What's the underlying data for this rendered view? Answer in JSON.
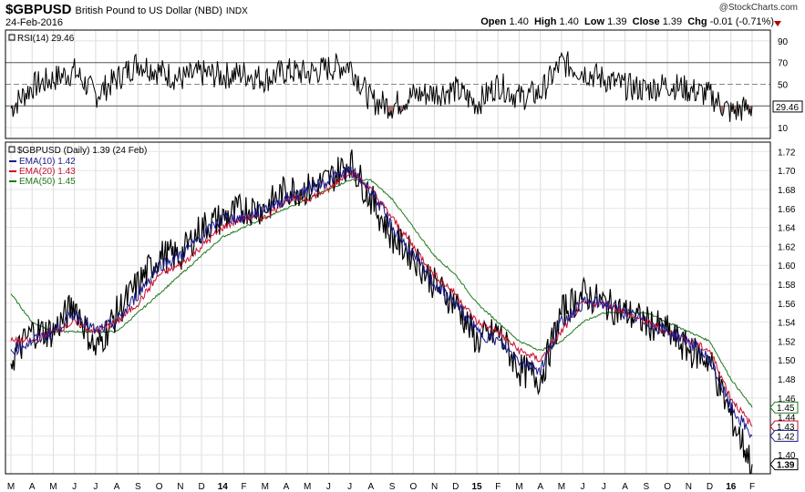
{
  "header": {
    "ticker": "$GBPUSD",
    "name": "British Pound to US Dollar (NBD)",
    "exchange": "INDX",
    "date": "24-Feb-2016",
    "logo": "@StockCharts.com",
    "open_label": "Open",
    "open": "1.40",
    "high_label": "High",
    "high": "1.40",
    "low_label": "Low",
    "low": "1.39",
    "close_label": "Close",
    "close": "1.39",
    "chg_label": "Chg",
    "chg": "-0.01 (-0.71%)",
    "chg_color": "#b40000"
  },
  "rsi_panel": {
    "legend": "RSI(14) 29.46",
    "value_tag": "29.46",
    "yticks": [
      "90",
      "70",
      "50",
      "30",
      "10"
    ],
    "overbought": 70,
    "oversold": 30,
    "ylim": [
      0,
      100
    ]
  },
  "price_panel": {
    "legend_title": "$GBPUSD (Daily) 1.39 (24 Feb)",
    "ema_legend": [
      {
        "label": "EMA(10) 1.42",
        "color": "#1a1a8a"
      },
      {
        "label": "EMA(20) 1.43",
        "color": "#c8102e"
      },
      {
        "label": "EMA(50) 1.45",
        "color": "#1e7a1e"
      }
    ],
    "yticks": [
      "1.72",
      "1.70",
      "1.68",
      "1.66",
      "1.64",
      "1.62",
      "1.60",
      "1.58",
      "1.56",
      "1.54",
      "1.52",
      "1.50",
      "1.48",
      "1.46",
      "1.44",
      "1.42",
      "1.40"
    ],
    "ylim": [
      1.38,
      1.73
    ],
    "value_tags": [
      {
        "text": "1.45",
        "value": 1.45,
        "color": "#1e7a1e"
      },
      {
        "text": "1.43",
        "value": 1.43,
        "color": "#c8102e"
      },
      {
        "text": "1.42",
        "value": 1.42,
        "color": "#1a1a8a"
      },
      {
        "text": "1.39",
        "value": 1.39,
        "color": "#000000"
      }
    ]
  },
  "xaxis": {
    "labels": [
      "M",
      "A",
      "M",
      "J",
      "J",
      "A",
      "S",
      "O",
      "N",
      "D",
      "14",
      "F",
      "M",
      "A",
      "M",
      "J",
      "J",
      "A",
      "S",
      "O",
      "N",
      "D",
      "15",
      "F",
      "M",
      "A",
      "M",
      "J",
      "J",
      "A",
      "S",
      "O",
      "N",
      "D",
      "16",
      "F"
    ],
    "bold": [
      "14",
      "15",
      "16"
    ]
  },
  "chart_data": {
    "type": "line",
    "title": "$GBPUSD British Pound to US Dollar (NBD) INDX",
    "x": [
      "2013-03",
      "2013-04",
      "2013-05",
      "2013-06",
      "2013-07",
      "2013-08",
      "2013-09",
      "2013-10",
      "2013-11",
      "2013-12",
      "2014-01",
      "2014-02",
      "2014-03",
      "2014-04",
      "2014-05",
      "2014-06",
      "2014-07",
      "2014-08",
      "2014-09",
      "2014-10",
      "2014-11",
      "2014-12",
      "2015-01",
      "2015-02",
      "2015-03",
      "2015-04",
      "2015-05",
      "2015-06",
      "2015-07",
      "2015-08",
      "2015-09",
      "2015-10",
      "2015-11",
      "2015-12",
      "2016-01",
      "2016-02"
    ],
    "series": [
      {
        "name": "$GBPUSD",
        "values": [
          1.5,
          1.53,
          1.53,
          1.56,
          1.51,
          1.55,
          1.58,
          1.61,
          1.61,
          1.64,
          1.65,
          1.66,
          1.66,
          1.68,
          1.68,
          1.69,
          1.71,
          1.67,
          1.63,
          1.61,
          1.58,
          1.56,
          1.52,
          1.53,
          1.49,
          1.48,
          1.55,
          1.57,
          1.56,
          1.55,
          1.54,
          1.53,
          1.51,
          1.5,
          1.44,
          1.39
        ]
      },
      {
        "name": "EMA(10)",
        "values": [
          1.51,
          1.52,
          1.53,
          1.55,
          1.53,
          1.54,
          1.57,
          1.6,
          1.61,
          1.63,
          1.65,
          1.65,
          1.66,
          1.67,
          1.68,
          1.69,
          1.7,
          1.68,
          1.64,
          1.61,
          1.58,
          1.56,
          1.53,
          1.52,
          1.5,
          1.49,
          1.54,
          1.56,
          1.56,
          1.55,
          1.54,
          1.53,
          1.52,
          1.5,
          1.45,
          1.42
        ]
      },
      {
        "name": "EMA(20)",
        "values": [
          1.52,
          1.52,
          1.53,
          1.54,
          1.53,
          1.54,
          1.56,
          1.59,
          1.6,
          1.62,
          1.64,
          1.65,
          1.65,
          1.67,
          1.67,
          1.68,
          1.7,
          1.68,
          1.65,
          1.62,
          1.59,
          1.57,
          1.54,
          1.53,
          1.51,
          1.5,
          1.53,
          1.56,
          1.56,
          1.55,
          1.54,
          1.53,
          1.52,
          1.51,
          1.46,
          1.43
        ]
      },
      {
        "name": "EMA(50)",
        "values": [
          1.57,
          1.54,
          1.53,
          1.53,
          1.53,
          1.53,
          1.55,
          1.57,
          1.59,
          1.61,
          1.63,
          1.64,
          1.65,
          1.66,
          1.67,
          1.68,
          1.69,
          1.69,
          1.67,
          1.64,
          1.61,
          1.59,
          1.56,
          1.54,
          1.52,
          1.51,
          1.52,
          1.54,
          1.55,
          1.55,
          1.55,
          1.54,
          1.53,
          1.52,
          1.48,
          1.45
        ]
      }
    ],
    "rsi_values": [
      28,
      48,
      55,
      62,
      40,
      55,
      70,
      62,
      55,
      60,
      58,
      60,
      55,
      62,
      60,
      65,
      68,
      35,
      30,
      40,
      42,
      45,
      32,
      50,
      38,
      42,
      70,
      62,
      55,
      48,
      45,
      50,
      45,
      40,
      24,
      29.46
    ],
    "ylim": [
      1.38,
      1.73
    ],
    "grid": true,
    "legend": "top-left"
  }
}
